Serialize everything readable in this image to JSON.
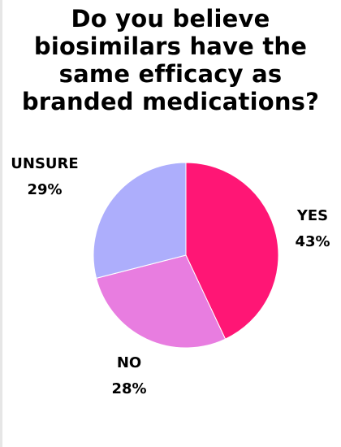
{
  "title_lines": [
    "Do you believe",
    "biosimilars have the",
    "same efficacy as",
    "branded medications?"
  ],
  "chart_data": {
    "type": "pie",
    "title": "Do you believe biosimilars have the same efficacy as branded medications?",
    "slices": [
      {
        "label": "YES",
        "value": 43,
        "value_label": "43%",
        "color": "#ff1675"
      },
      {
        "label": "NO",
        "value": 28,
        "value_label": "28%",
        "color": "#e87de0"
      },
      {
        "label": "UNSURE",
        "value": 29,
        "value_label": "29%",
        "color": "#adaefc"
      }
    ],
    "legend": "none"
  }
}
